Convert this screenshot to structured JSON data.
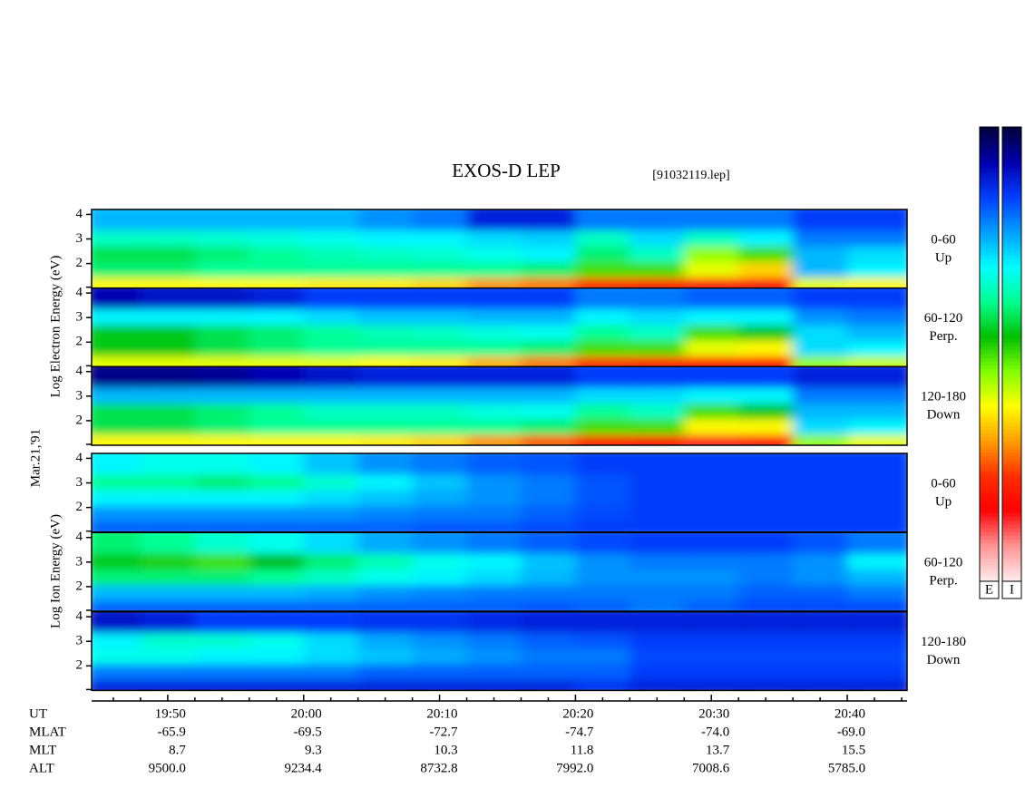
{
  "chart_data": {
    "type": "spectrogram",
    "title": "EXOS-D LEP",
    "subtitle": "[91032119.lep]",
    "date_label": "Mar.21,'91",
    "electron_axis_label": "Log Electron Energy (eV)",
    "ion_axis_label": "Log Ion Energy (eV)",
    "x_label": "UT",
    "xlim": [
      44.4,
      104.4
    ],
    "xticks": [
      {
        "value": 50,
        "label": "19:50"
      },
      {
        "value": 60,
        "label": "20:00"
      },
      {
        "value": 70,
        "label": "20:10"
      },
      {
        "value": 80,
        "label": "20:20"
      },
      {
        "value": 90,
        "label": "20:30"
      },
      {
        "value": 100,
        "label": "20:40"
      }
    ],
    "xminorticks": [
      46,
      48,
      52,
      54,
      56,
      58,
      62,
      64,
      66,
      68,
      72,
      74,
      76,
      78,
      82,
      84,
      86,
      88,
      92,
      94,
      96,
      98,
      102,
      104
    ],
    "ylim": [
      1,
      4.2
    ],
    "yticks": [
      2,
      3,
      4
    ],
    "time_bins": [
      44.4,
      48.4,
      52.4,
      56.4,
      60.4,
      64.4,
      68.4,
      72.4,
      76.4,
      80.4,
      84.4,
      88.4,
      92.4,
      96.4,
      100.4,
      104.4
    ],
    "energy_bins": [
      1,
      1.64,
      2.28,
      2.92,
      3.56,
      4.2
    ],
    "colorscale": [
      "#000040",
      "#0000b0",
      "#0040ff",
      "#00a0ff",
      "#00ffff",
      "#00ff90",
      "#00c000",
      "#80ff00",
      "#ffff00",
      "#ffa000",
      "#ff3000",
      "#ff0000",
      "#ff9090",
      "#ffe8e8"
    ],
    "colorbar_labels": [
      "E",
      "I"
    ],
    "ephemeris": [
      {
        "name": "MLAT",
        "values": [
          "-65.9",
          "-69.5",
          "-72.7",
          "-74.7",
          "-74.0",
          "-69.0"
        ]
      },
      {
        "name": "MLT",
        "values": [
          "8.7",
          "9.3",
          "10.3",
          "11.8",
          "13.7",
          "15.5"
        ]
      },
      {
        "name": "ALT",
        "values": [
          "9500.0",
          "9234.4",
          "8732.8",
          "7992.0",
          "7008.6",
          "5785.0"
        ]
      }
    ],
    "panels": [
      {
        "label": "0-60",
        "sublabel": "Up",
        "z": [
          [
            0.62,
            0.62,
            0.62,
            0.62,
            0.63,
            0.63,
            0.65,
            0.7,
            0.72,
            0.78,
            0.8,
            0.85,
            0.85,
            0.6,
            0.62
          ],
          [
            0.4,
            0.4,
            0.38,
            0.38,
            0.38,
            0.38,
            0.38,
            0.38,
            0.4,
            0.5,
            0.5,
            0.6,
            0.65,
            0.25,
            0.3
          ],
          [
            0.42,
            0.42,
            0.4,
            0.38,
            0.36,
            0.35,
            0.34,
            0.32,
            0.3,
            0.4,
            0.35,
            0.55,
            0.5,
            0.25,
            0.28
          ],
          [
            0.35,
            0.35,
            0.34,
            0.33,
            0.32,
            0.3,
            0.3,
            0.28,
            0.27,
            0.35,
            0.28,
            0.35,
            0.3,
            0.2,
            0.2
          ],
          [
            0.25,
            0.25,
            0.25,
            0.25,
            0.25,
            0.22,
            0.2,
            0.12,
            0.12,
            0.2,
            0.2,
            0.2,
            0.2,
            0.15,
            0.15
          ]
        ]
      },
      {
        "label": "60-120",
        "sublabel": "Perp.",
        "z": [
          [
            0.6,
            0.6,
            0.6,
            0.6,
            0.6,
            0.62,
            0.63,
            0.68,
            0.72,
            0.78,
            0.8,
            0.84,
            0.84,
            0.55,
            0.58
          ],
          [
            0.45,
            0.45,
            0.42,
            0.4,
            0.38,
            0.38,
            0.38,
            0.38,
            0.4,
            0.5,
            0.5,
            0.6,
            0.62,
            0.28,
            0.3
          ],
          [
            0.45,
            0.45,
            0.42,
            0.4,
            0.38,
            0.36,
            0.35,
            0.33,
            0.32,
            0.38,
            0.35,
            0.5,
            0.45,
            0.28,
            0.25
          ],
          [
            0.3,
            0.3,
            0.3,
            0.3,
            0.28,
            0.26,
            0.26,
            0.25,
            0.25,
            0.3,
            0.28,
            0.3,
            0.3,
            0.22,
            0.2
          ],
          [
            0.08,
            0.1,
            0.1,
            0.12,
            0.15,
            0.15,
            0.15,
            0.15,
            0.15,
            0.2,
            0.2,
            0.18,
            0.18,
            0.15,
            0.15
          ]
        ]
      },
      {
        "label": "120-180",
        "sublabel": "Down",
        "z": [
          [
            0.62,
            0.62,
            0.62,
            0.62,
            0.62,
            0.63,
            0.65,
            0.7,
            0.74,
            0.8,
            0.82,
            0.86,
            0.85,
            0.55,
            0.6
          ],
          [
            0.42,
            0.42,
            0.4,
            0.38,
            0.38,
            0.38,
            0.38,
            0.38,
            0.4,
            0.5,
            0.5,
            0.62,
            0.62,
            0.28,
            0.3
          ],
          [
            0.42,
            0.42,
            0.4,
            0.38,
            0.35,
            0.35,
            0.35,
            0.33,
            0.32,
            0.38,
            0.35,
            0.5,
            0.45,
            0.25,
            0.25
          ],
          [
            0.25,
            0.25,
            0.25,
            0.25,
            0.25,
            0.25,
            0.25,
            0.25,
            0.25,
            0.28,
            0.28,
            0.3,
            0.3,
            0.2,
            0.2
          ],
          [
            0.05,
            0.05,
            0.06,
            0.08,
            0.1,
            0.12,
            0.12,
            0.12,
            0.12,
            0.15,
            0.15,
            0.15,
            0.15,
            0.12,
            0.12
          ]
        ]
      },
      {
        "label": "0-60",
        "sublabel": "Up",
        "z": [
          [
            0.18,
            0.18,
            0.18,
            0.18,
            0.18,
            0.18,
            0.17,
            0.17,
            0.16,
            0.15,
            0.15,
            0.15,
            0.15,
            0.15,
            0.15
          ],
          [
            0.22,
            0.22,
            0.22,
            0.22,
            0.22,
            0.21,
            0.2,
            0.2,
            0.18,
            0.16,
            0.15,
            0.15,
            0.15,
            0.15,
            0.15
          ],
          [
            0.3,
            0.3,
            0.3,
            0.3,
            0.28,
            0.26,
            0.24,
            0.22,
            0.2,
            0.17,
            0.15,
            0.15,
            0.15,
            0.15,
            0.15
          ],
          [
            0.38,
            0.38,
            0.4,
            0.38,
            0.34,
            0.3,
            0.26,
            0.22,
            0.2,
            0.17,
            0.15,
            0.15,
            0.15,
            0.15,
            0.15
          ],
          [
            0.3,
            0.32,
            0.32,
            0.3,
            0.26,
            0.22,
            0.2,
            0.18,
            0.17,
            0.15,
            0.15,
            0.15,
            0.15,
            0.15,
            0.15
          ]
        ]
      },
      {
        "label": "60-120",
        "sublabel": "Perp.",
        "z": [
          [
            0.18,
            0.18,
            0.18,
            0.18,
            0.18,
            0.18,
            0.18,
            0.18,
            0.17,
            0.18,
            0.2,
            0.18,
            0.16,
            0.16,
            0.16
          ],
          [
            0.25,
            0.25,
            0.25,
            0.25,
            0.24,
            0.22,
            0.21,
            0.2,
            0.2,
            0.2,
            0.2,
            0.2,
            0.18,
            0.18,
            0.2
          ],
          [
            0.4,
            0.4,
            0.4,
            0.38,
            0.35,
            0.32,
            0.3,
            0.28,
            0.25,
            0.22,
            0.22,
            0.22,
            0.2,
            0.22,
            0.25
          ],
          [
            0.45,
            0.48,
            0.5,
            0.46,
            0.4,
            0.36,
            0.32,
            0.3,
            0.26,
            0.22,
            0.2,
            0.2,
            0.2,
            0.22,
            0.3
          ],
          [
            0.4,
            0.38,
            0.34,
            0.32,
            0.28,
            0.24,
            0.22,
            0.2,
            0.18,
            0.16,
            0.15,
            0.15,
            0.15,
            0.17,
            0.2
          ]
        ]
      },
      {
        "label": "120-180",
        "sublabel": "Down",
        "z": [
          [
            0.12,
            0.12,
            0.12,
            0.12,
            0.12,
            0.12,
            0.12,
            0.12,
            0.12,
            0.14,
            0.12,
            0.12,
            0.12,
            0.12,
            0.12
          ],
          [
            0.2,
            0.2,
            0.2,
            0.2,
            0.2,
            0.18,
            0.18,
            0.18,
            0.18,
            0.18,
            0.15,
            0.15,
            0.15,
            0.15,
            0.15
          ],
          [
            0.32,
            0.32,
            0.3,
            0.3,
            0.28,
            0.26,
            0.24,
            0.22,
            0.2,
            0.2,
            0.16,
            0.16,
            0.16,
            0.16,
            0.16
          ],
          [
            0.3,
            0.34,
            0.34,
            0.32,
            0.28,
            0.24,
            0.22,
            0.2,
            0.18,
            0.17,
            0.15,
            0.15,
            0.15,
            0.15,
            0.15
          ],
          [
            0.1,
            0.12,
            0.15,
            0.15,
            0.15,
            0.14,
            0.14,
            0.13,
            0.12,
            0.12,
            0.12,
            0.12,
            0.12,
            0.12,
            0.12
          ]
        ]
      }
    ]
  }
}
